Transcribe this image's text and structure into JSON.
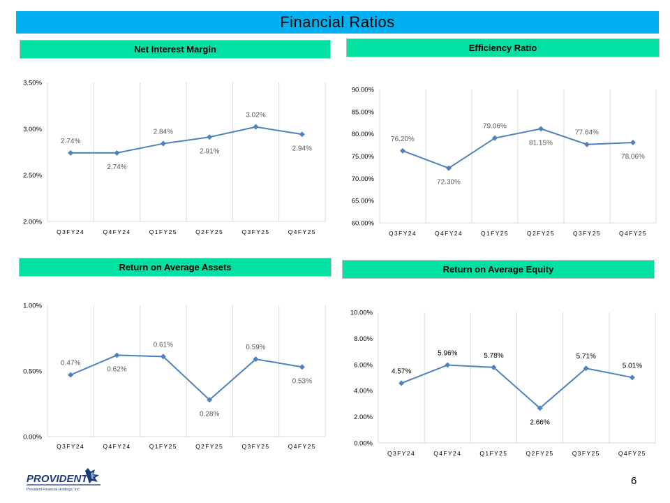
{
  "slide": {
    "title": "Financial Ratios",
    "page_number": "6"
  },
  "logo": {
    "wordmark": "PROVIDENT",
    "tagline": "Provident Financial Holdings, Inc."
  },
  "colors": {
    "title_bar": "#00b0f0",
    "panel_header": "#00e1a3",
    "series": "#4f81bd",
    "grid": "#d9d9d9"
  },
  "chart_data": [
    {
      "type": "line",
      "title": "Net Interest Margin",
      "categories": [
        "Q3FY24",
        "Q4FY24",
        "Q1FY25",
        "Q2FY25",
        "Q3FY25",
        "Q4FY25"
      ],
      "values": [
        2.74,
        2.74,
        2.84,
        2.91,
        3.02,
        2.94
      ],
      "labels": [
        "2.74%",
        "2.74%",
        "2.84%",
        "2.91%",
        "3.02%",
        "2.94%"
      ],
      "label_position": [
        "above",
        "below",
        "above",
        "below",
        "above",
        "below"
      ],
      "ylim": [
        2.0,
        3.5
      ],
      "yticks": [
        2.0,
        2.5,
        3.0,
        3.5
      ],
      "ytick_labels": [
        "2.00%",
        "2.50%",
        "3.00%",
        "3.50%"
      ],
      "label_color": "#595959"
    },
    {
      "type": "line",
      "title": "Efficiency Ratio",
      "categories": [
        "Q3FY24",
        "Q4FY24",
        "Q1FY25",
        "Q2FY25",
        "Q3FY25",
        "Q4FY25"
      ],
      "values": [
        76.2,
        72.3,
        79.06,
        81.15,
        77.64,
        78.06
      ],
      "labels": [
        "76.20%",
        "72.30%",
        "79.06%",
        "81.15%",
        "77.64%",
        "78.06%"
      ],
      "label_position": [
        "above",
        "below",
        "above",
        "below",
        "above",
        "below"
      ],
      "ylim": [
        60.0,
        90.0
      ],
      "yticks": [
        60,
        65,
        70,
        75,
        80,
        85,
        90
      ],
      "ytick_labels": [
        "60.00%",
        "65.00%",
        "70.00%",
        "75.00%",
        "80.00%",
        "85.00%",
        "90.00%"
      ],
      "label_color": "#595959"
    },
    {
      "type": "line",
      "title": "Return on Average Assets",
      "categories": [
        "Q3FY24",
        "Q4FY24",
        "Q1FY25",
        "Q2FY25",
        "Q3FY25",
        "Q4FY25"
      ],
      "values": [
        0.47,
        0.62,
        0.61,
        0.28,
        0.59,
        0.53
      ],
      "labels": [
        "0.47%",
        "0.62%",
        "0.61%",
        "0.28%",
        "0.59%",
        "0.53%"
      ],
      "label_position": [
        "above",
        "below",
        "above",
        "below",
        "above",
        "below"
      ],
      "ylim": [
        0.0,
        1.0
      ],
      "yticks": [
        0.0,
        0.5,
        1.0
      ],
      "ytick_labels": [
        "0.00%",
        "0.50%",
        "1.00%"
      ],
      "label_color": "#595959"
    },
    {
      "type": "line",
      "title": "Return on Average Equity",
      "categories": [
        "Q3FY24",
        "Q4FY24",
        "Q1FY25",
        "Q2FY25",
        "Q3FY25",
        "Q4FY25"
      ],
      "values": [
        4.57,
        5.96,
        5.78,
        2.66,
        5.71,
        5.01
      ],
      "labels": [
        "4.57%",
        "5.96%",
        "5.78%",
        "2.66%",
        "5.71%",
        "5.01%"
      ],
      "label_position": [
        "above",
        "above",
        "above",
        "below",
        "above",
        "above"
      ],
      "ylim": [
        0.0,
        10.0
      ],
      "yticks": [
        0,
        2,
        4,
        6,
        8,
        10
      ],
      "ytick_labels": [
        "0.00%",
        "2.00%",
        "4.00%",
        "6.00%",
        "8.00%",
        "10.00%"
      ],
      "label_color": "#000000"
    }
  ]
}
